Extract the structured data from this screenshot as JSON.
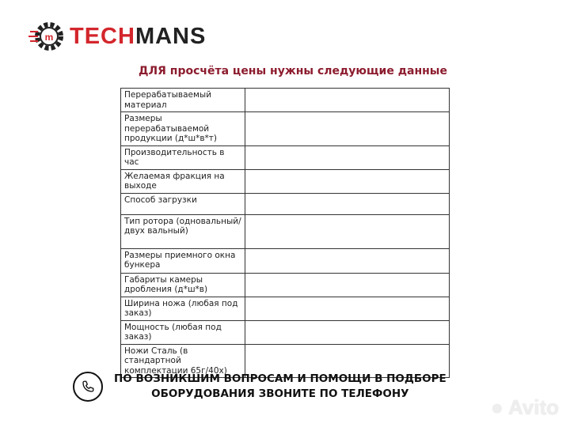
{
  "logo": {
    "part1": "TECH",
    "part2": "MANS"
  },
  "title": "ДЛЯ просчёта цены нужны следующие данные",
  "rows": [
    {
      "label": "Перерабатываемый материал",
      "value": ""
    },
    {
      "label": "Размеры перерабатываемой продукции (д*ш*в*т)",
      "value": ""
    },
    {
      "label": "Производительность в час",
      "value": ""
    },
    {
      "label": "Желаемая фракция на выходе",
      "value": ""
    },
    {
      "label": "Способ загрузки",
      "value": ""
    },
    {
      "label": "Тип ротора (одновальный/двух вальный)",
      "value": ""
    },
    {
      "label": "Размеры приемного окна бункера",
      "value": ""
    },
    {
      "label": "Габариты камеры дробления (д*ш*в)",
      "value": ""
    },
    {
      "label": "Ширина ножа (любая под заказ)",
      "value": ""
    },
    {
      "label": "Мощность (любая под заказ)",
      "value": ""
    },
    {
      "label": "Ножи Сталь (в стандартной комплектации 65г/40х)",
      "value": ""
    }
  ],
  "footer": {
    "line1": "ПО ВОЗНИКШИМ ВОПРОСАМ И ПОМОЩИ В ПОДБОРЕ",
    "line2": "ОБОРУДОВАНИЯ ЗВОНИТЕ ПО ТЕЛЕФОНУ"
  },
  "watermark": "Avito"
}
